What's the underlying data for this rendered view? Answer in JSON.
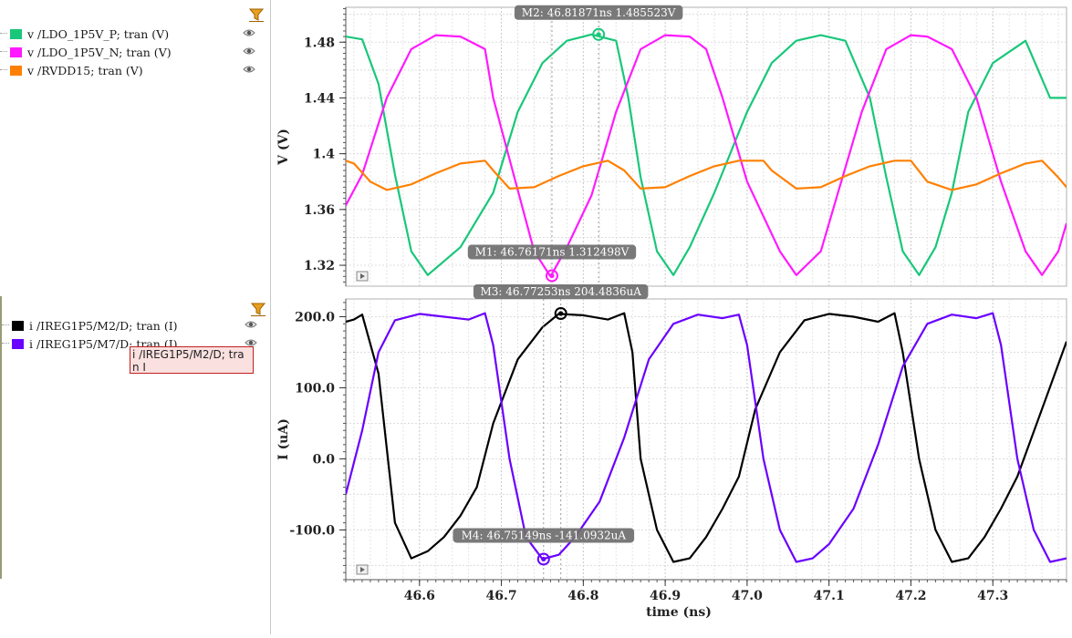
{
  "legend": {
    "top_items": [
      {
        "label": "v /LDO_1P5V_P; tran (V)",
        "color": "#19c77a"
      },
      {
        "label": "v /LDO_1P5V_N; tran (V)",
        "color": "#ff1aff"
      },
      {
        "label": "v /RVDD15; tran (V)",
        "color": "#ff8000"
      }
    ],
    "bottom_items": [
      {
        "label": "i /IREG1P5/M2/D; tran (I)",
        "color": "#000000"
      },
      {
        "label": "i /IREG1P5/M7/D; tran (I)",
        "color": "#6a00ff"
      }
    ],
    "tooltip": "i /IREG1P5/M2/D; tran I",
    "icons": {
      "filter": "filter-icon",
      "visibility": "eye-icon"
    }
  },
  "chart_data": [
    {
      "type": "line",
      "ylabel": "V (V)",
      "xlim": [
        46.51,
        47.39
      ],
      "ylim": [
        1.305,
        1.505
      ],
      "yticks": [
        1.32,
        1.36,
        1.4,
        1.44,
        1.48
      ],
      "ytick_labels": [
        "1.32",
        "1.36",
        "1.4",
        "1.44",
        "1.48"
      ],
      "grid": true,
      "series": [
        {
          "name": "v /LDO_1P5V_P; tran (V)",
          "color": "#19c77a",
          "x": [
            46.51,
            46.53,
            46.55,
            46.57,
            46.59,
            46.61,
            46.65,
            46.69,
            46.72,
            46.75,
            46.78,
            46.81,
            46.84,
            46.855,
            46.87,
            46.89,
            46.91,
            46.93,
            46.96,
            47.0,
            47.03,
            47.06,
            47.09,
            47.12,
            47.15,
            47.17,
            47.19,
            47.21,
            47.23,
            47.25,
            47.27,
            47.3,
            47.34,
            47.37,
            47.39
          ],
          "y": [
            1.484,
            1.482,
            1.45,
            1.385,
            1.33,
            1.313,
            1.333,
            1.372,
            1.43,
            1.465,
            1.481,
            1.4855,
            1.481,
            1.44,
            1.383,
            1.33,
            1.313,
            1.333,
            1.372,
            1.43,
            1.465,
            1.481,
            1.485,
            1.481,
            1.44,
            1.383,
            1.33,
            1.313,
            1.333,
            1.372,
            1.43,
            1.465,
            1.481,
            1.44,
            1.44
          ]
        },
        {
          "name": "v /LDO_1P5V_N; tran (V)",
          "color": "#ff1aff",
          "x": [
            46.51,
            46.53,
            46.56,
            46.59,
            46.62,
            46.65,
            46.68,
            46.69,
            46.715,
            46.74,
            46.76,
            46.78,
            46.81,
            46.84,
            46.87,
            46.9,
            46.93,
            46.95,
            46.97,
            47.0,
            47.04,
            47.06,
            47.09,
            47.11,
            47.14,
            47.17,
            47.2,
            47.22,
            47.25,
            47.28,
            47.31,
            47.34,
            47.36,
            47.38,
            47.39
          ],
          "y": [
            1.363,
            1.385,
            1.44,
            1.475,
            1.485,
            1.484,
            1.475,
            1.44,
            1.385,
            1.33,
            1.312,
            1.333,
            1.37,
            1.43,
            1.475,
            1.485,
            1.484,
            1.475,
            1.44,
            1.38,
            1.33,
            1.313,
            1.33,
            1.37,
            1.43,
            1.475,
            1.485,
            1.484,
            1.475,
            1.44,
            1.38,
            1.33,
            1.313,
            1.33,
            1.35
          ]
        },
        {
          "name": "v /RVDD15; tran (V)",
          "color": "#ff8000",
          "x": [
            46.51,
            46.52,
            46.54,
            46.56,
            46.59,
            46.62,
            46.65,
            46.68,
            46.69,
            46.71,
            46.74,
            46.77,
            46.8,
            46.83,
            46.85,
            46.87,
            46.9,
            46.93,
            46.96,
            46.99,
            47.02,
            47.03,
            47.06,
            47.09,
            47.12,
            47.15,
            47.18,
            47.2,
            47.22,
            47.25,
            47.28,
            47.31,
            47.34,
            47.36,
            47.38,
            47.39
          ],
          "y": [
            1.395,
            1.393,
            1.38,
            1.374,
            1.378,
            1.386,
            1.393,
            1.395,
            1.388,
            1.375,
            1.376,
            1.384,
            1.391,
            1.395,
            1.388,
            1.375,
            1.376,
            1.384,
            1.391,
            1.395,
            1.395,
            1.388,
            1.375,
            1.376,
            1.384,
            1.391,
            1.395,
            1.395,
            1.38,
            1.374,
            1.378,
            1.386,
            1.393,
            1.395,
            1.383,
            1.376
          ]
        }
      ],
      "markers": [
        {
          "label": "M2: 46.81871ns 1.485523V",
          "x": 46.81871,
          "y": 1.485523,
          "color": "#19c77a"
        },
        {
          "label": "M1: 46.76171ns 1.312498V",
          "x": 46.76171,
          "y": 1.312498,
          "color": "#ff1aff"
        }
      ]
    },
    {
      "type": "line",
      "ylabel": "I (uA)",
      "xlabel": "time (ns)",
      "xlim": [
        46.51,
        47.39
      ],
      "ylim": [
        -170,
        225
      ],
      "yticks": [
        -100,
        0,
        100,
        200
      ],
      "ytick_labels": [
        "-100.0",
        "0.0",
        "100.0",
        "200.0"
      ],
      "xticks": [
        46.6,
        46.7,
        46.8,
        46.9,
        47.0,
        47.1,
        47.2,
        47.3
      ],
      "xtick_labels": [
        "46.6",
        "46.7",
        "46.8",
        "46.9",
        "47.0",
        "47.1",
        "47.2",
        "47.3"
      ],
      "grid": true,
      "series": [
        {
          "name": "i /IREG1P5/M2/D; tran (I)",
          "color": "#000000",
          "x": [
            46.51,
            46.52,
            46.53,
            46.55,
            46.57,
            46.59,
            46.61,
            46.63,
            46.65,
            46.67,
            46.69,
            46.72,
            46.75,
            46.77,
            46.8,
            46.83,
            46.85,
            46.86,
            46.87,
            46.89,
            46.91,
            46.93,
            46.95,
            46.97,
            46.99,
            47.01,
            47.04,
            47.07,
            47.1,
            47.13,
            47.16,
            47.18,
            47.19,
            47.21,
            47.23,
            47.25,
            47.27,
            47.29,
            47.31,
            47.33,
            47.36,
            47.39
          ],
          "y": [
            193,
            196,
            203,
            120,
            -90,
            -140,
            -130,
            -110,
            -80,
            -40,
            50,
            140,
            185,
            204,
            202,
            196,
            205,
            150,
            0,
            -100,
            -145,
            -140,
            -110,
            -70,
            -25,
            70,
            150,
            195,
            204,
            200,
            193,
            205,
            150,
            0,
            -100,
            -145,
            -140,
            -110,
            -70,
            -25,
            70,
            165
          ]
        },
        {
          "name": "i /IREG1P5/M7/D; tran (I)",
          "color": "#6a00ff",
          "x": [
            46.51,
            46.53,
            46.55,
            46.57,
            46.6,
            46.63,
            46.66,
            46.68,
            46.69,
            46.71,
            46.73,
            46.75,
            46.77,
            46.79,
            46.82,
            46.85,
            46.88,
            46.91,
            46.94,
            46.97,
            46.99,
            47.0,
            47.02,
            47.04,
            47.06,
            47.08,
            47.1,
            47.13,
            47.16,
            47.19,
            47.22,
            47.25,
            47.28,
            47.3,
            47.31,
            47.33,
            47.35,
            47.37,
            47.39
          ],
          "y": [
            -50,
            40,
            150,
            195,
            204,
            200,
            196,
            205,
            160,
            0,
            -110,
            -141,
            -135,
            -110,
            -60,
            30,
            140,
            190,
            203,
            198,
            203,
            160,
            0,
            -100,
            -145,
            -140,
            -120,
            -70,
            20,
            130,
            190,
            203,
            198,
            205,
            160,
            0,
            -100,
            -145,
            -140
          ]
        }
      ],
      "markers": [
        {
          "label": "M3: 46.77253ns 204.4836uA",
          "x": 46.77253,
          "y": 204.4836,
          "color": "#000000"
        },
        {
          "label": "M4: 46.75149ns -141.0932uA",
          "x": 46.75149,
          "y": -141.0932,
          "color": "#6a00ff"
        }
      ]
    }
  ]
}
